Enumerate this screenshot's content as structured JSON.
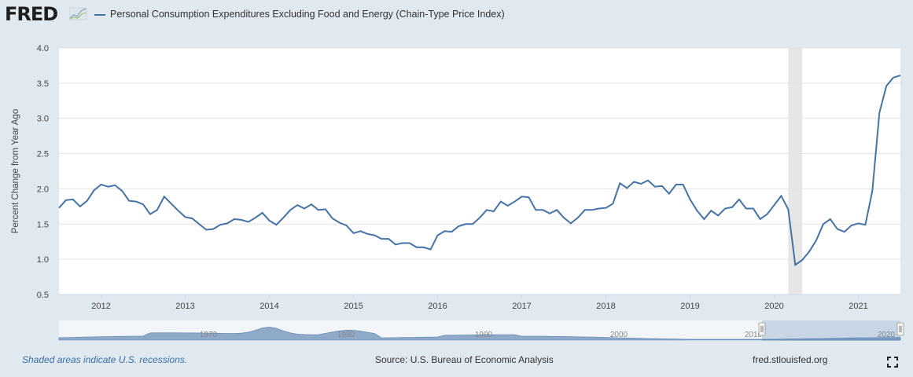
{
  "header": {
    "logo_text": "FRED",
    "series_title": "Personal Consumption Expenditures Excluding Food and Energy (Chain-Type Price Index)",
    "series_color": "#4572a7"
  },
  "footer": {
    "recession_note": "Shaded areas indicate U.S. recessions.",
    "source": "Source: U.S. Bureau of Economic Analysis",
    "site": "fred.stlouisfed.org"
  },
  "icons": {
    "expand": "fullscreen-icon",
    "logo_mark": "chart-trend-icon"
  },
  "chart_data": {
    "type": "line",
    "title": "",
    "ylabel": "Percent Change from Year Ago",
    "xlabel": "",
    "ylim": [
      0.5,
      4.0
    ],
    "xlim": [
      "2011-07",
      "2021-07"
    ],
    "yticks": [
      "0.5",
      "1.0",
      "1.5",
      "2.0",
      "2.5",
      "3.0",
      "3.5",
      "4.0"
    ],
    "xticks": [
      "2012",
      "2013",
      "2014",
      "2015",
      "2016",
      "2017",
      "2018",
      "2019",
      "2020",
      "2021"
    ],
    "grid": true,
    "recessions": [
      {
        "start": "2020-03",
        "end": "2020-04"
      }
    ],
    "series": [
      {
        "name": "Personal Consumption Expenditures Excluding Food and Energy (Chain-Type Price Index)",
        "color": "#4572a7",
        "start": "2011-07",
        "values": [
          1.73,
          1.84,
          1.85,
          1.75,
          1.83,
          1.98,
          2.06,
          2.03,
          2.05,
          1.97,
          1.83,
          1.82,
          1.78,
          1.64,
          1.7,
          1.89,
          1.79,
          1.69,
          1.6,
          1.58,
          1.5,
          1.42,
          1.43,
          1.49,
          1.51,
          1.57,
          1.56,
          1.53,
          1.59,
          1.66,
          1.55,
          1.49,
          1.59,
          1.7,
          1.77,
          1.72,
          1.78,
          1.7,
          1.71,
          1.58,
          1.52,
          1.48,
          1.37,
          1.4,
          1.36,
          1.34,
          1.29,
          1.29,
          1.21,
          1.23,
          1.23,
          1.17,
          1.17,
          1.14,
          1.34,
          1.4,
          1.39,
          1.47,
          1.5,
          1.5,
          1.59,
          1.7,
          1.68,
          1.82,
          1.76,
          1.82,
          1.89,
          1.88,
          1.7,
          1.7,
          1.65,
          1.7,
          1.59,
          1.51,
          1.59,
          1.7,
          1.7,
          1.72,
          1.73,
          1.79,
          2.08,
          2.01,
          2.1,
          2.07,
          2.12,
          2.03,
          2.04,
          1.93,
          2.06,
          2.06,
          1.85,
          1.69,
          1.57,
          1.69,
          1.62,
          1.72,
          1.74,
          1.85,
          1.72,
          1.72,
          1.57,
          1.64,
          1.77,
          1.9,
          1.71,
          0.92,
          0.99,
          1.11,
          1.27,
          1.5,
          1.57,
          1.43,
          1.39,
          1.48,
          1.51,
          1.49,
          1.97,
          3.08,
          3.46,
          3.58,
          3.61
        ]
      }
    ],
    "navigator": {
      "labels": [
        "1970",
        "1980",
        "1990",
        "2000",
        "2010",
        "2020"
      ]
    }
  }
}
